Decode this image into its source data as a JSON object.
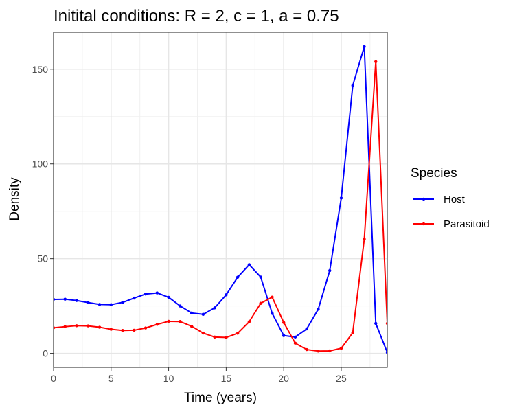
{
  "chart_data": {
    "type": "line",
    "title": "Initital conditions: R = 2, c = 1, a = 0.75",
    "xlabel": "Time (years)",
    "ylabel": "Density",
    "xlim": [
      0,
      29
    ],
    "ylim": [
      -7.4,
      169.5
    ],
    "x_ticks": [
      0,
      5,
      10,
      15,
      20,
      25
    ],
    "y_ticks": [
      0,
      50,
      100,
      150
    ],
    "grid": true,
    "legend": {
      "title": "Species",
      "position": "right"
    },
    "x": [
      0,
      1,
      2,
      3,
      4,
      5,
      6,
      7,
      8,
      9,
      10,
      11,
      12,
      13,
      14,
      15,
      16,
      17,
      18,
      19,
      20,
      21,
      22,
      23,
      24,
      25,
      26,
      27,
      28,
      29
    ],
    "series": [
      {
        "name": "Host",
        "color": "#0000ff",
        "values": [
          28.5,
          28.6,
          27.9,
          26.8,
          25.8,
          25.7,
          26.9,
          29.2,
          31.3,
          31.9,
          29.6,
          25.0,
          21.3,
          20.6,
          24.0,
          30.9,
          40.2,
          46.8,
          40.3,
          21.1,
          9.4,
          8.6,
          12.9,
          23.3,
          43.7,
          82.0,
          141.4,
          161.9,
          15.8,
          0.5
        ]
      },
      {
        "name": "Parasitoid",
        "color": "#ff0000",
        "values": [
          13.5,
          14.1,
          14.6,
          14.5,
          13.8,
          12.7,
          12.1,
          12.2,
          13.4,
          15.3,
          16.9,
          16.8,
          14.3,
          10.7,
          8.6,
          8.4,
          10.6,
          16.7,
          26.4,
          29.7,
          16.3,
          5.4,
          2.0,
          1.2,
          1.3,
          2.7,
          10.9,
          60.3,
          154.0,
          15.8
        ]
      }
    ]
  }
}
